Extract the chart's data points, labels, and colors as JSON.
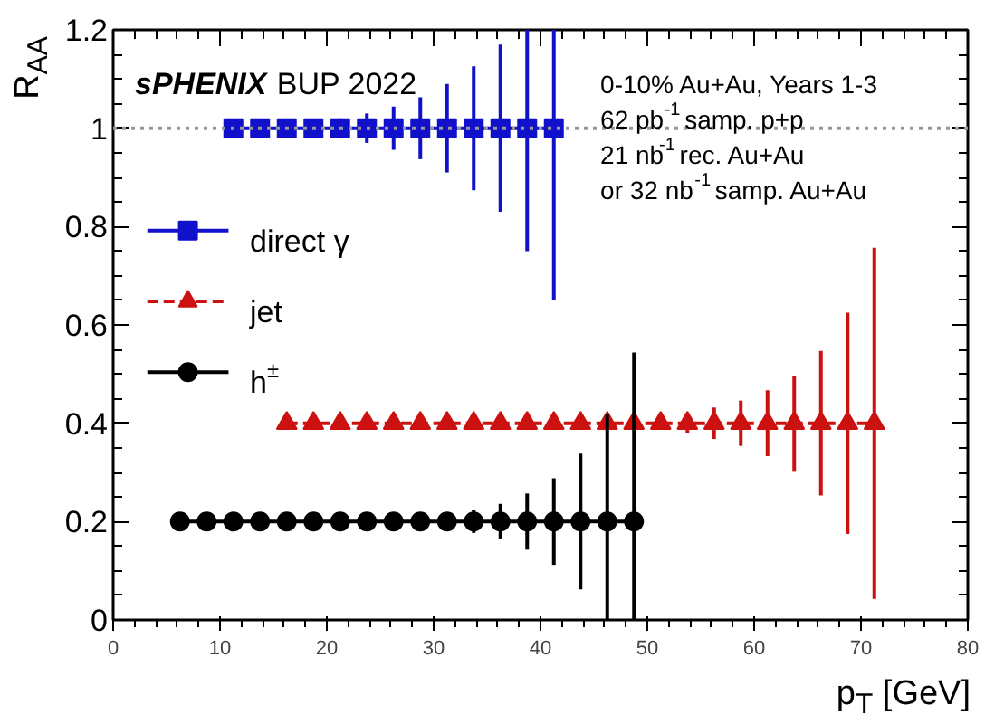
{
  "chart_data": {
    "type": "line",
    "xlabel": "p$_{T}$ [GeV]",
    "ylabel": "R$_{AA}$",
    "xlim": [
      0,
      80
    ],
    "xticks": [
      0,
      10,
      20,
      30,
      40,
      50,
      60,
      70,
      80
    ],
    "ylim": [
      0,
      1.2
    ],
    "yticks": [
      0,
      0.2,
      0.4,
      0.6,
      0.8,
      1,
      1.2
    ],
    "legend": "left",
    "annotations": [
      "sPHENIX BUP 2022",
      "0-10% Au+Au, Years 1-3",
      "62 pb$^{-1}$ samp. p+p",
      "21 nb$^{-1}$ rec. Au+Au",
      "or 32 nb$^{-1}$ samp. Au+Au"
    ],
    "ref_lines": [
      {
        "axis": "y",
        "value": 1,
        "color": "#999999",
        "line_style": "dotted"
      }
    ],
    "series": [
      {
        "name": "direct γ",
        "color": "#1111cc",
        "marker": "square",
        "line_style": "solid",
        "x": [
          11.25,
          13.75,
          16.25,
          18.75,
          21.25,
          23.75,
          26.25,
          28.75,
          31.25,
          33.75,
          36.25,
          38.75,
          41.25
        ],
        "values": [
          1,
          1,
          1,
          1,
          1,
          1,
          1,
          1,
          1,
          1,
          1,
          1,
          1
        ],
        "errors": [
          null,
          null,
          null,
          null,
          0.02,
          0.03,
          0.044,
          0.063,
          0.09,
          0.126,
          0.17,
          [
            0.75,
            1.2
          ],
          [
            0.65,
            1.2
          ]
        ]
      },
      {
        "name": "jet",
        "color": "#cc1111",
        "marker": "triangle",
        "line_style": "dashed",
        "x": [
          16.25,
          18.75,
          21.25,
          23.75,
          26.25,
          28.75,
          31.25,
          33.75,
          36.25,
          38.75,
          41.25,
          43.75,
          46.25,
          48.75,
          51.25,
          53.75,
          56.25,
          58.75,
          61.25,
          63.75,
          66.25,
          68.75,
          71.25
        ],
        "values": [
          0.4,
          0.4,
          0.4,
          0.4,
          0.4,
          0.4,
          0.4,
          0.4,
          0.4,
          0.4,
          0.4,
          0.4,
          0.4,
          0.4,
          0.4,
          0.4,
          0.4,
          0.4,
          0.4,
          0.4,
          0.4,
          0.4,
          0.4
        ],
        "errors": [
          null,
          null,
          null,
          null,
          null,
          null,
          null,
          null,
          null,
          null,
          null,
          null,
          null,
          null,
          null,
          0.019,
          0.032,
          0.046,
          0.067,
          0.097,
          0.147,
          0.225,
          0.357
        ]
      },
      {
        "name": "h$^{±}$",
        "color": "#000000",
        "marker": "circle",
        "line_style": "solid",
        "x": [
          6.25,
          8.75,
          11.25,
          13.75,
          16.25,
          18.75,
          21.25,
          23.75,
          26.25,
          28.75,
          31.25,
          33.75,
          36.25,
          38.75,
          41.25,
          43.75,
          46.25,
          48.75
        ],
        "values": [
          0.2,
          0.2,
          0.2,
          0.2,
          0.2,
          0.2,
          0.2,
          0.2,
          0.2,
          0.2,
          0.2,
          0.2,
          0.2,
          0.2,
          0.2,
          0.2,
          0.2,
          0.2
        ],
        "errors": [
          null,
          null,
          null,
          null,
          null,
          null,
          null,
          null,
          null,
          null,
          null,
          0.023,
          0.036,
          0.057,
          0.088,
          0.138,
          [
            0,
            0.418
          ],
          [
            0,
            0.544
          ]
        ]
      }
    ]
  }
}
